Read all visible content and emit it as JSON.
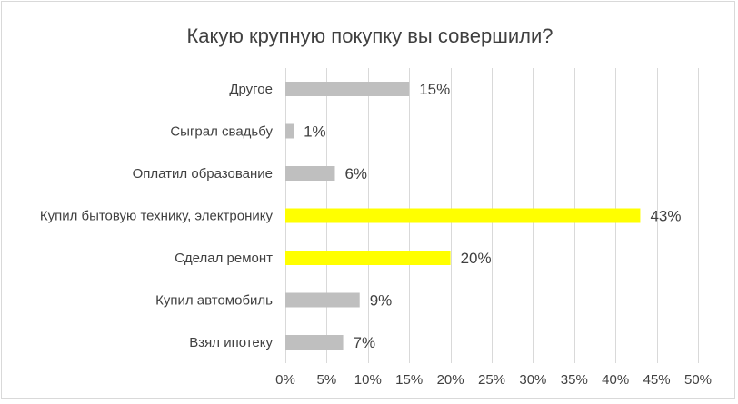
{
  "chart_data": {
    "type": "bar",
    "orientation": "horizontal",
    "title": "Какую крупную покупку вы совершили?",
    "categories": [
      "Другое",
      "Сыграл свадьбу",
      "Оплатил образование",
      "Купил бытовую технику, электронику",
      "Сделал ремонт",
      "Купил автомобиль",
      "Взял ипотеку"
    ],
    "values": [
      15,
      1,
      6,
      43,
      20,
      9,
      7
    ],
    "data_labels": [
      "15%",
      "1%",
      "6%",
      "43%",
      "20%",
      "9%",
      "7%"
    ],
    "colors": [
      "#bfbfbf",
      "#bfbfbf",
      "#bfbfbf",
      "#ffff00",
      "#ffff00",
      "#bfbfbf",
      "#bfbfbf"
    ],
    "xlim": [
      0,
      50
    ],
    "xticks": [
      0,
      5,
      10,
      15,
      20,
      25,
      30,
      35,
      40,
      45,
      50
    ],
    "xtick_labels": [
      "0%",
      "5%",
      "10%",
      "15%",
      "20%",
      "25%",
      "30%",
      "35%",
      "40%",
      "45%",
      "50%"
    ],
    "grid": "vertical",
    "gridline_color": "#d9d9d9",
    "legend": "none"
  }
}
